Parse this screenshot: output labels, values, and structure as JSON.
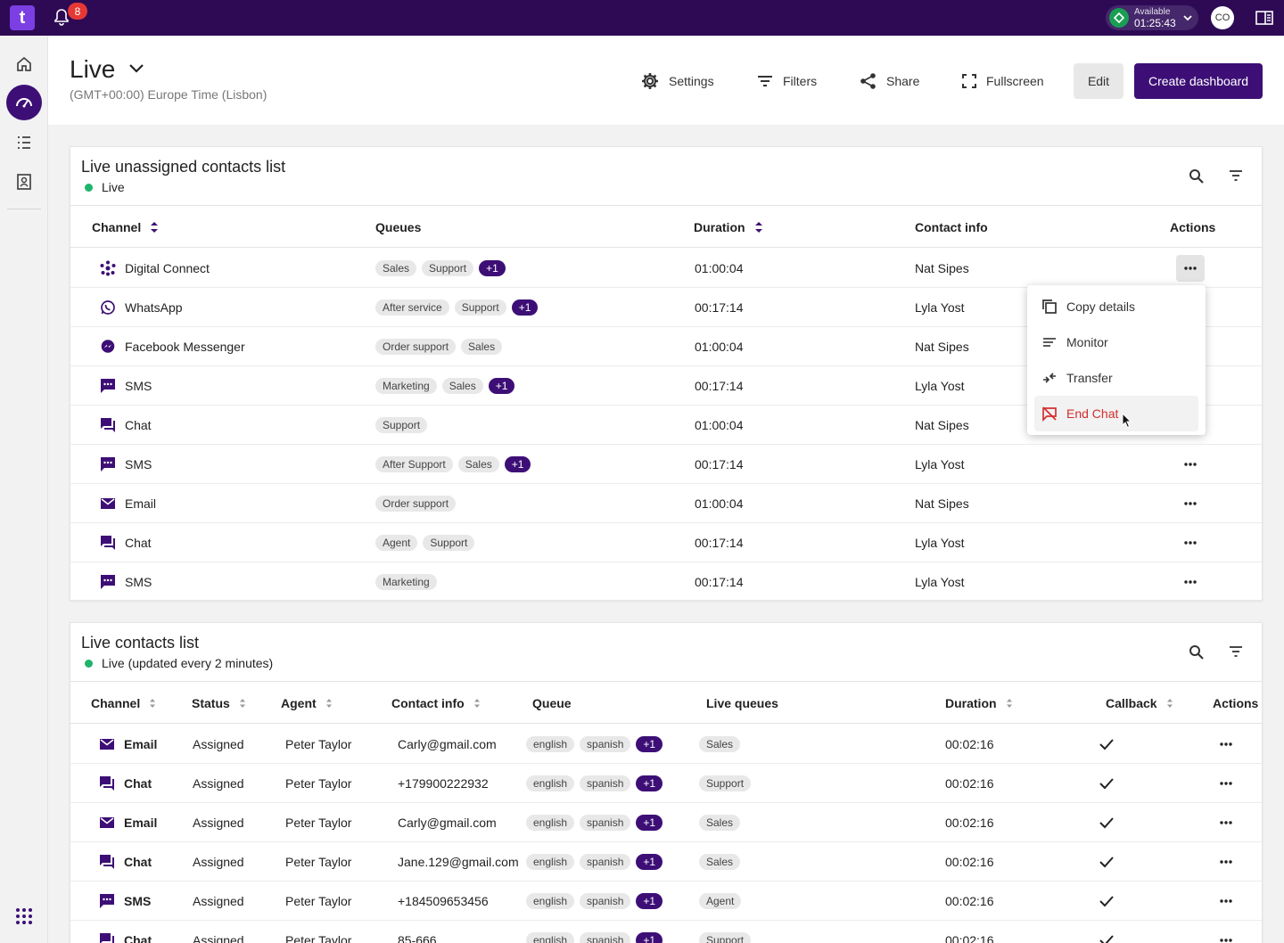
{
  "topbar": {
    "logo_letter": "t",
    "notification_count": "8",
    "status": {
      "label": "Available",
      "timer": "01:25:43",
      "color": "#1a9e54"
    },
    "avatar_initials": "CO"
  },
  "header": {
    "title": "Live",
    "timezone": "(GMT+00:00) Europe Time (Lisbon)",
    "settings_label": "Settings",
    "filters_label": "Filters",
    "share_label": "Share",
    "fullscreen_label": "Fullscreen",
    "edit_label": "Edit",
    "create_label": "Create dashboard"
  },
  "unassigned": {
    "title": "Live unassigned contacts list",
    "live_label": "Live",
    "columns": {
      "channel": "Channel",
      "queues": "Queues",
      "duration": "Duration",
      "contact": "Contact info",
      "actions": "Actions"
    },
    "rows": [
      {
        "channel": "Digital Connect",
        "icon": "digital-connect-icon",
        "queues": [
          "Sales",
          "Support"
        ],
        "more": "+1",
        "duration": "01:00:04",
        "contact": "Nat Sipes"
      },
      {
        "channel": "WhatsApp",
        "icon": "whatsapp-icon",
        "queues": [
          "After service",
          "Support"
        ],
        "more": "+1",
        "duration": "00:17:14",
        "contact": "Lyla Yost"
      },
      {
        "channel": "Facebook Messenger",
        "icon": "messenger-icon",
        "queues": [
          "Order support",
          "Sales"
        ],
        "more": "",
        "duration": "01:00:04",
        "contact": "Nat Sipes"
      },
      {
        "channel": "SMS",
        "icon": "sms-icon",
        "queues": [
          "Marketing",
          "Sales"
        ],
        "more": "+1",
        "duration": "00:17:14",
        "contact": "Lyla Yost"
      },
      {
        "channel": "Chat",
        "icon": "chat-icon",
        "queues": [
          "Support"
        ],
        "more": "",
        "duration": "01:00:04",
        "contact": "Nat Sipes"
      },
      {
        "channel": "SMS",
        "icon": "sms-icon",
        "queues": [
          "After Support",
          "Sales"
        ],
        "more": "+1",
        "duration": "00:17:14",
        "contact": "Lyla Yost"
      },
      {
        "channel": "Email",
        "icon": "email-icon",
        "queues": [
          "Order support"
        ],
        "more": "",
        "duration": "01:00:04",
        "contact": "Nat Sipes"
      },
      {
        "channel": "Chat",
        "icon": "chat-icon",
        "queues": [
          "Agent",
          "Support"
        ],
        "more": "",
        "duration": "00:17:14",
        "contact": "Lyla Yost"
      },
      {
        "channel": "SMS",
        "icon": "sms-icon",
        "queues": [
          "Marketing"
        ],
        "more": "",
        "duration": "00:17:14",
        "contact": "Lyla Yost"
      }
    ],
    "menu": [
      "Copy details",
      "Monitor",
      "Transfer",
      "End Chat"
    ]
  },
  "contacts": {
    "title": "Live contacts list",
    "live_label": "Live (updated every 2 minutes)",
    "columns": {
      "channel": "Channel",
      "status": "Status",
      "agent": "Agent",
      "contact": "Contact info",
      "queue": "Queue",
      "live_queues": "Live queues",
      "duration": "Duration",
      "callback": "Callback",
      "actions": "Actions"
    },
    "rows": [
      {
        "channel": "Email",
        "icon": "email-icon",
        "status": "Assigned",
        "agent": "Peter Taylor",
        "contact": "Carly@gmail.com",
        "queue": [
          "english",
          "spanish"
        ],
        "more": "+1",
        "live_queue": "Sales",
        "duration": "00:02:16",
        "callback": true
      },
      {
        "channel": "Chat",
        "icon": "chat-icon",
        "status": "Assigned",
        "agent": "Peter Taylor",
        "contact": "+179900222932",
        "queue": [
          "english",
          "spanish"
        ],
        "more": "+1",
        "live_queue": "Support",
        "duration": "00:02:16",
        "callback": true
      },
      {
        "channel": "Email",
        "icon": "email-icon",
        "status": "Assigned",
        "agent": "Peter Taylor",
        "contact": "Carly@gmail.com",
        "queue": [
          "english",
          "spanish"
        ],
        "more": "+1",
        "live_queue": "Sales",
        "duration": "00:02:16",
        "callback": true
      },
      {
        "channel": "Chat",
        "icon": "chat-icon",
        "status": "Assigned",
        "agent": "Peter Taylor",
        "contact": "Jane.129@gmail.com",
        "queue": [
          "english",
          "spanish"
        ],
        "more": "+1",
        "live_queue": "Sales",
        "duration": "00:02:16",
        "callback": true
      },
      {
        "channel": "SMS",
        "icon": "sms-icon",
        "status": "Assigned",
        "agent": "Peter Taylor",
        "contact": "+184509653456",
        "queue": [
          "english",
          "spanish"
        ],
        "more": "+1",
        "live_queue": "Agent",
        "duration": "00:02:16",
        "callback": true
      },
      {
        "channel": "Chat",
        "icon": "chat-icon",
        "status": "Assigned",
        "agent": "Peter Taylor",
        "contact": "85-666",
        "queue": [
          "english",
          "spanish"
        ],
        "more": "+1",
        "live_queue": "Support",
        "duration": "00:02:16",
        "callback": true
      }
    ]
  },
  "colors": {
    "brand": "#2e0a55",
    "accent": "#3d0f76",
    "danger": "#d32f2f",
    "live": "#1fb46b"
  }
}
